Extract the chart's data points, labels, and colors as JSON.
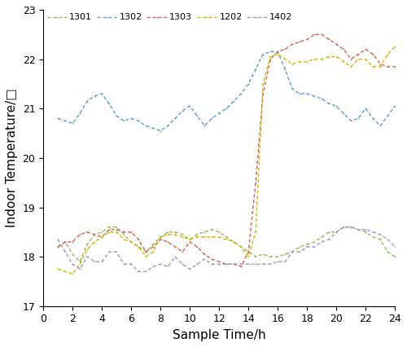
{
  "series": {
    "1301": {
      "color": "#8fbc5a",
      "label": "1301",
      "x": [
        1,
        1.5,
        2,
        2.5,
        3,
        3.5,
        4,
        4.5,
        5,
        5.5,
        6,
        6.5,
        7,
        7.5,
        8,
        8.5,
        9,
        9.5,
        10,
        10.5,
        11,
        11.5,
        12,
        12.5,
        13,
        13.5,
        14,
        14.5,
        15,
        15.5,
        16,
        16.5,
        17,
        17.5,
        18,
        18.5,
        19,
        19.5,
        20,
        20.5,
        21,
        21.5,
        22,
        22.5,
        23,
        23.5,
        24
      ],
      "y": [
        18.2,
        18.3,
        18.05,
        17.9,
        18.25,
        18.45,
        18.5,
        18.6,
        18.6,
        18.45,
        18.3,
        18.2,
        18.1,
        18.25,
        18.4,
        18.5,
        18.5,
        18.45,
        18.35,
        18.45,
        18.5,
        18.55,
        18.5,
        18.4,
        18.3,
        18.2,
        18.1,
        18.0,
        18.05,
        18.0,
        18.0,
        18.05,
        18.1,
        18.2,
        18.25,
        18.3,
        18.4,
        18.5,
        18.5,
        18.6,
        18.6,
        18.55,
        18.5,
        18.4,
        18.35,
        18.1,
        18.0
      ]
    },
    "1302": {
      "color": "#5b9bd5",
      "label": "1302",
      "x": [
        1,
        1.5,
        2,
        2.5,
        3,
        3.5,
        4,
        4.5,
        5,
        5.5,
        6,
        6.5,
        7,
        7.5,
        8,
        8.5,
        9,
        9.5,
        10,
        10.5,
        11,
        11.5,
        12,
        12.5,
        13,
        13.5,
        14,
        14.5,
        15,
        15.5,
        16,
        16.5,
        17,
        17.5,
        18,
        18.5,
        19,
        19.5,
        20,
        20.5,
        21,
        21.5,
        22,
        22.5,
        23,
        23.5,
        24
      ],
      "y": [
        20.8,
        20.75,
        20.7,
        20.9,
        21.15,
        21.25,
        21.3,
        21.1,
        20.85,
        20.75,
        20.8,
        20.75,
        20.65,
        20.6,
        20.55,
        20.65,
        20.8,
        20.95,
        21.05,
        20.85,
        20.65,
        20.8,
        20.9,
        21.0,
        21.15,
        21.3,
        21.5,
        21.8,
        22.1,
        22.15,
        22.15,
        21.8,
        21.4,
        21.3,
        21.3,
        21.25,
        21.2,
        21.1,
        21.05,
        20.9,
        20.75,
        20.8,
        21.0,
        20.8,
        20.65,
        20.85,
        21.05
      ]
    },
    "1303": {
      "color": "#d6604d",
      "label": "1303",
      "x": [
        1,
        1.5,
        2,
        2.5,
        3,
        3.5,
        4,
        4.5,
        5,
        5.5,
        6,
        6.5,
        7,
        7.5,
        8,
        8.5,
        9,
        9.5,
        10,
        10.5,
        11,
        11.5,
        12,
        12.5,
        13,
        13.5,
        14,
        14.5,
        15,
        15.5,
        16,
        16.5,
        17,
        17.5,
        18,
        18.5,
        19,
        19.5,
        20,
        20.5,
        21,
        21.5,
        22,
        22.5,
        23,
        23.5,
        24
      ],
      "y": [
        18.2,
        18.3,
        18.3,
        18.45,
        18.5,
        18.45,
        18.4,
        18.55,
        18.55,
        18.5,
        18.5,
        18.35,
        18.1,
        18.2,
        18.35,
        18.3,
        18.2,
        18.1,
        18.3,
        18.2,
        18.05,
        17.95,
        17.9,
        17.85,
        17.85,
        17.8,
        18.1,
        19.5,
        21.3,
        22.0,
        22.15,
        22.2,
        22.3,
        22.35,
        22.4,
        22.5,
        22.5,
        22.4,
        22.3,
        22.2,
        22.0,
        22.1,
        22.2,
        22.1,
        21.9,
        21.85,
        21.85
      ]
    },
    "1202": {
      "color": "#d4b800",
      "label": "1202",
      "x": [
        1,
        1.5,
        2,
        2.5,
        3,
        3.5,
        4,
        4.5,
        5,
        5.5,
        6,
        6.5,
        7,
        7.5,
        8,
        8.5,
        9,
        9.5,
        10,
        10.5,
        11,
        11.5,
        12,
        12.5,
        13,
        13.5,
        14,
        14.5,
        15,
        15.5,
        16,
        16.5,
        17,
        17.5,
        18,
        18.5,
        19,
        19.5,
        20,
        20.5,
        21,
        21.5,
        22,
        22.5,
        23,
        23.5,
        24
      ],
      "y": [
        17.75,
        17.7,
        17.65,
        17.85,
        18.15,
        18.3,
        18.4,
        18.5,
        18.5,
        18.35,
        18.3,
        18.2,
        18.0,
        18.1,
        18.4,
        18.45,
        18.45,
        18.4,
        18.35,
        18.4,
        18.4,
        18.4,
        18.4,
        18.35,
        18.3,
        18.2,
        18.0,
        18.5,
        21.5,
        22.05,
        22.1,
        22.0,
        21.9,
        21.95,
        21.95,
        22.0,
        22.0,
        22.05,
        22.05,
        21.95,
        21.85,
        22.0,
        22.0,
        21.85,
        21.85,
        22.1,
        22.25
      ]
    },
    "1402": {
      "color": "#9999c0",
      "label": "1402",
      "x": [
        1,
        1.5,
        2,
        2.5,
        3,
        3.5,
        4,
        4.5,
        5,
        5.5,
        6,
        6.5,
        7,
        7.5,
        8,
        8.5,
        9,
        9.5,
        10,
        10.5,
        11,
        11.5,
        12,
        12.5,
        13,
        13.5,
        14,
        14.5,
        15,
        15.5,
        16,
        16.5,
        17,
        17.5,
        18,
        18.5,
        19,
        19.5,
        20,
        20.5,
        21,
        21.5,
        22,
        22.5,
        23,
        23.5,
        24
      ],
      "y": [
        18.35,
        18.1,
        17.85,
        17.75,
        18.0,
        17.9,
        17.9,
        18.1,
        18.1,
        17.85,
        17.85,
        17.7,
        17.7,
        17.8,
        17.85,
        17.8,
        18.0,
        17.85,
        17.75,
        17.85,
        17.95,
        17.85,
        17.85,
        17.85,
        17.85,
        17.85,
        17.85,
        17.85,
        17.85,
        17.85,
        17.9,
        17.9,
        18.1,
        18.1,
        18.2,
        18.2,
        18.3,
        18.35,
        18.5,
        18.6,
        18.6,
        18.55,
        18.55,
        18.5,
        18.45,
        18.35,
        18.2
      ]
    }
  },
  "xlabel": "Sample Time/h",
  "ylabel": "Indoor Temperature/□",
  "xlim": [
    0,
    24
  ],
  "ylim": [
    17,
    23
  ],
  "xticks": [
    0,
    2,
    4,
    6,
    8,
    10,
    12,
    14,
    16,
    18,
    20,
    22,
    24
  ],
  "yticks": [
    17,
    18,
    19,
    20,
    21,
    22,
    23
  ],
  "legend_order": [
    "1301",
    "1302",
    "1303",
    "1202",
    "1402"
  ],
  "figsize": [
    5.0,
    4.26
  ],
  "dpi": 100
}
